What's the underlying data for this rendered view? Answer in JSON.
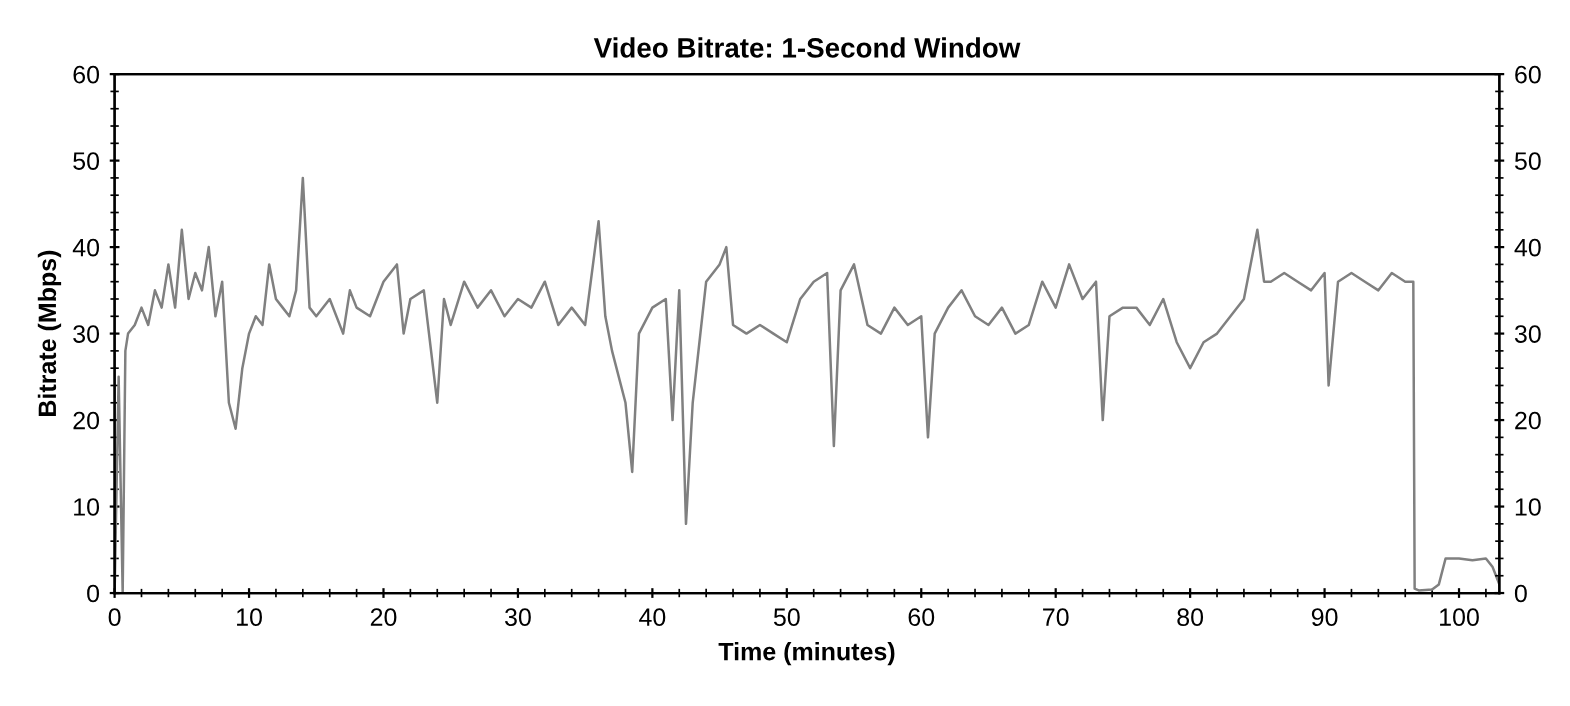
{
  "chart_data": {
    "type": "line",
    "title": "Video Bitrate: 1-Second Window",
    "xlabel": "Time (minutes)",
    "ylabel": "Bitrate (Mbps)",
    "xlim": [
      0,
      103
    ],
    "xticks": [
      0,
      10,
      20,
      30,
      40,
      50,
      60,
      70,
      80,
      90,
      100
    ],
    "ylim": [
      0,
      60
    ],
    "yticks": [
      0,
      10,
      20,
      30,
      40,
      50,
      60
    ],
    "y2lim": [
      0,
      60
    ],
    "y2ticks": [
      0,
      10,
      20,
      30,
      40,
      50,
      60
    ],
    "grid": false,
    "legend": false,
    "marker": "none",
    "line_style": "solid",
    "series": [
      {
        "color": "#808080",
        "x": [
          0,
          0.3,
          0.6,
          0.8,
          1,
          1.5,
          2,
          2.5,
          3,
          3.5,
          4,
          4.5,
          5,
          5.5,
          6,
          6.5,
          7,
          7.5,
          8,
          8.5,
          9,
          9.5,
          10,
          10.5,
          11,
          11.5,
          12,
          12.5,
          13,
          13.5,
          14,
          14.5,
          15,
          16,
          17,
          17.5,
          18,
          19,
          20,
          21,
          21.5,
          22,
          23,
          24,
          24.5,
          25,
          26,
          27,
          28,
          29,
          30,
          31,
          32,
          33,
          34,
          35,
          36,
          36.5,
          37,
          38,
          38.5,
          39,
          40,
          41,
          41.5,
          42,
          42.5,
          43,
          44,
          45,
          45.5,
          46,
          47,
          48,
          49,
          50,
          51,
          52,
          53,
          53.5,
          54,
          55,
          56,
          57,
          58,
          59,
          60,
          60.5,
          61,
          62,
          63,
          64,
          65,
          66,
          67,
          68,
          69,
          70,
          71,
          72,
          73,
          73.5,
          74,
          75,
          76,
          77,
          78,
          79,
          80,
          81,
          82,
          83,
          84,
          85,
          85.5,
          86,
          87,
          88,
          89,
          90,
          90.3,
          91,
          92,
          93,
          94,
          95,
          96,
          96.6,
          96.7,
          97,
          98,
          98.5,
          99,
          100,
          101,
          102,
          102.5,
          103
        ],
        "values": [
          0,
          25,
          0,
          28,
          30,
          31,
          33,
          31,
          35,
          33,
          38,
          33,
          42,
          34,
          37,
          35,
          40,
          32,
          36,
          22,
          19,
          26,
          30,
          32,
          31,
          38,
          34,
          33,
          32,
          35,
          48,
          33,
          32,
          34,
          30,
          35,
          33,
          32,
          36,
          38,
          30,
          34,
          35,
          22,
          34,
          31,
          36,
          33,
          35,
          32,
          34,
          33,
          36,
          31,
          33,
          31,
          43,
          32,
          28,
          22,
          14,
          30,
          33,
          34,
          20,
          35,
          8,
          22,
          36,
          38,
          40,
          31,
          30,
          31,
          30,
          29,
          34,
          36,
          37,
          17,
          35,
          38,
          31,
          30,
          33,
          31,
          32,
          18,
          30,
          33,
          35,
          32,
          31,
          33,
          30,
          31,
          36,
          33,
          38,
          34,
          36,
          20,
          32,
          33,
          33,
          31,
          34,
          29,
          26,
          29,
          30,
          32,
          34,
          42,
          36,
          36,
          37,
          36,
          35,
          37,
          24,
          36,
          37,
          36,
          35,
          37,
          36,
          36,
          0.5,
          0.3,
          0.4,
          1,
          4,
          4,
          3.8,
          4,
          3,
          1
        ]
      }
    ]
  }
}
